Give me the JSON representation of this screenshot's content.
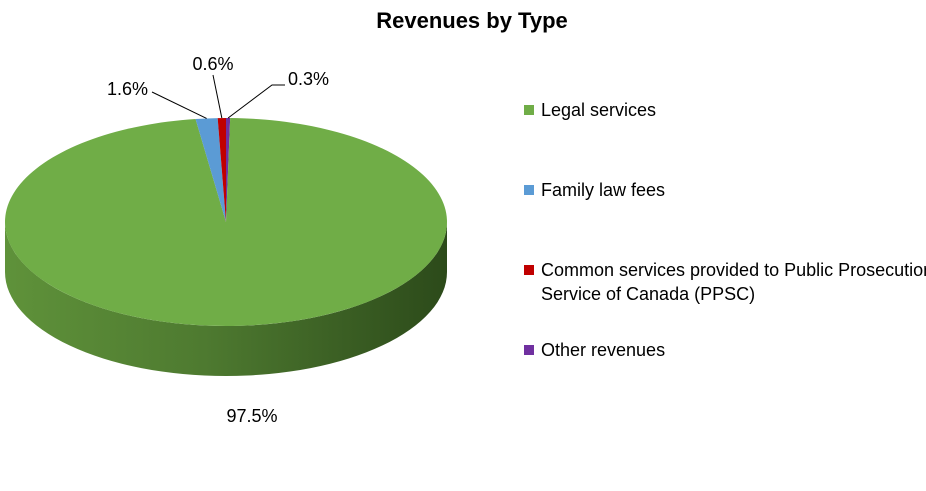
{
  "chart_data": {
    "type": "pie",
    "title": "Revenues by Type",
    "slices": [
      {
        "label": "Legal services",
        "value": 97.5,
        "value_label": "97.5%",
        "color": "#70AD47"
      },
      {
        "label": "Family law fees",
        "value": 1.6,
        "value_label": "1.6%",
        "color": "#5B9BD5"
      },
      {
        "label": "Common services provided to Public Prosecution Service of Canada (PPSC)",
        "value": 0.6,
        "value_label": "0.6%",
        "color": "#C00000"
      },
      {
        "label": "Other revenues",
        "value": 0.3,
        "value_label": "0.3%",
        "color": "#7030A0"
      }
    ],
    "legend_position": "right",
    "style": "3d"
  }
}
